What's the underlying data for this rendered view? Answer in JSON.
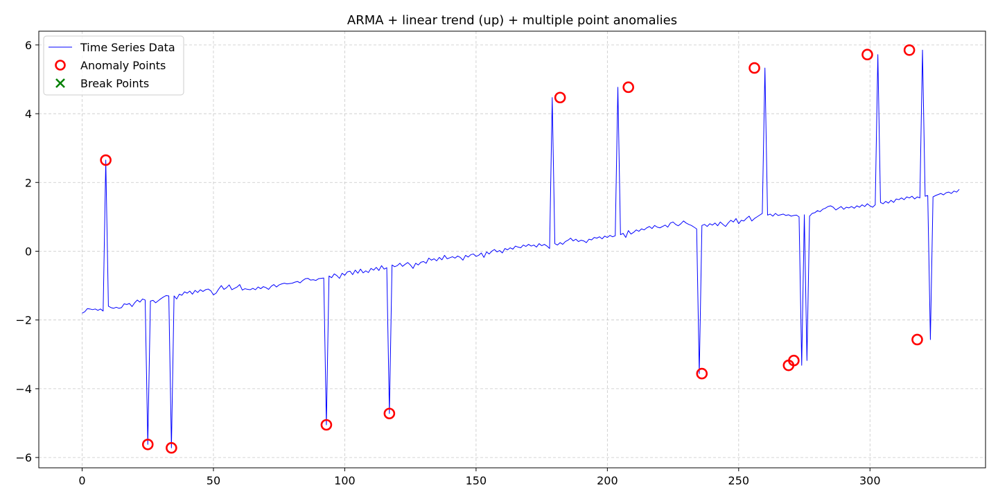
{
  "chart_data": {
    "type": "line",
    "title": "ARMA + linear trend (up) + multiple point anomalies",
    "xlabel": "",
    "ylabel": "",
    "xlim": [
      -16.5,
      344
    ],
    "ylim": [
      -6.3,
      6.4
    ],
    "xticks": [
      0,
      50,
      100,
      150,
      200,
      250,
      300
    ],
    "yticks": [
      -6,
      -4,
      -2,
      0,
      2,
      4,
      6
    ],
    "grid": true,
    "legend_position": "top-left",
    "colors": {
      "series": "#0000ff",
      "anomaly": "#ff0000",
      "break": "#008000"
    },
    "legend": [
      {
        "label": "Time Series Data",
        "marker": "line",
        "color": "#0000ff"
      },
      {
        "label": "Anomaly Points",
        "marker": "circle",
        "color": "#ff0000"
      },
      {
        "label": "Break Points",
        "marker": "x",
        "color": "#008000"
      }
    ],
    "series": [
      {
        "name": "Time Series Data",
        "color": "#0000ff",
        "values": [
          -1.8,
          -1.76,
          -1.67,
          -1.68,
          -1.7,
          -1.68,
          -1.72,
          -1.68,
          -1.74,
          2.65,
          -1.6,
          -1.64,
          -1.66,
          -1.63,
          -1.66,
          -1.64,
          -1.53,
          -1.55,
          -1.52,
          -1.61,
          -1.5,
          -1.42,
          -1.48,
          -1.39,
          -1.42,
          -5.62,
          -1.45,
          -1.43,
          -1.5,
          -1.44,
          -1.38,
          -1.33,
          -1.29,
          -1.3,
          -5.72,
          -1.3,
          -1.39,
          -1.25,
          -1.28,
          -1.18,
          -1.22,
          -1.16,
          -1.25,
          -1.14,
          -1.2,
          -1.12,
          -1.17,
          -1.12,
          -1.1,
          -1.15,
          -1.27,
          -1.22,
          -1.1,
          -1.0,
          -1.11,
          -1.06,
          -0.98,
          -1.12,
          -1.08,
          -1.04,
          -0.97,
          -1.13,
          -1.09,
          -1.11,
          -1.12,
          -1.08,
          -1.12,
          -1.04,
          -1.09,
          -1.03,
          -1.06,
          -1.11,
          -1.02,
          -0.97,
          -1.04,
          -0.98,
          -0.95,
          -0.93,
          -0.95,
          -0.94,
          -0.93,
          -0.9,
          -0.88,
          -0.92,
          -0.85,
          -0.8,
          -0.79,
          -0.84,
          -0.83,
          -0.85,
          -0.8,
          -0.79,
          -0.78,
          -5.05,
          -0.72,
          -0.77,
          -0.66,
          -0.71,
          -0.79,
          -0.64,
          -0.7,
          -0.6,
          -0.58,
          -0.68,
          -0.55,
          -0.64,
          -0.52,
          -0.63,
          -0.57,
          -0.62,
          -0.5,
          -0.55,
          -0.47,
          -0.56,
          -0.42,
          -0.52,
          -0.48,
          -4.72,
          -0.4,
          -0.45,
          -0.42,
          -0.35,
          -0.44,
          -0.38,
          -0.33,
          -0.4,
          -0.5,
          -0.35,
          -0.4,
          -0.32,
          -0.3,
          -0.35,
          -0.2,
          -0.26,
          -0.22,
          -0.28,
          -0.18,
          -0.25,
          -0.12,
          -0.22,
          -0.19,
          -0.16,
          -0.2,
          -0.14,
          -0.18,
          -0.26,
          -0.12,
          -0.17,
          -0.1,
          -0.08,
          -0.15,
          -0.12,
          -0.05,
          -0.18,
          -0.02,
          -0.08,
          0.0,
          0.05,
          -0.02,
          0.02,
          -0.05,
          0.08,
          0.04,
          0.1,
          0.06,
          0.15,
          0.12,
          0.1,
          0.18,
          0.14,
          0.2,
          0.15,
          0.18,
          0.12,
          0.22,
          0.16,
          0.2,
          0.15,
          0.08,
          4.47,
          0.22,
          0.18,
          0.25,
          0.2,
          0.28,
          0.32,
          0.38,
          0.3,
          0.35,
          0.28,
          0.32,
          0.3,
          0.25,
          0.35,
          0.33,
          0.4,
          0.38,
          0.42,
          0.36,
          0.44,
          0.4,
          0.46,
          0.42,
          0.45,
          4.77,
          0.48,
          0.52,
          0.4,
          0.6,
          0.5,
          0.55,
          0.62,
          0.58,
          0.65,
          0.62,
          0.68,
          0.72,
          0.66,
          0.75,
          0.7,
          0.68,
          0.72,
          0.76,
          0.7,
          0.82,
          0.85,
          0.78,
          0.74,
          0.8,
          0.88,
          0.82,
          0.78,
          0.75,
          0.7,
          0.65,
          -3.56,
          0.75,
          0.78,
          0.72,
          0.8,
          0.76,
          0.82,
          0.74,
          0.85,
          0.78,
          0.72,
          0.82,
          0.9,
          0.85,
          0.95,
          0.8,
          0.9,
          0.88,
          0.96,
          1.02,
          0.88,
          0.95,
          1.0,
          1.05,
          1.1,
          5.33,
          1.05,
          1.08,
          1.02,
          1.1,
          1.04,
          1.06,
          1.08,
          1.04,
          1.06,
          1.02,
          1.04,
          1.05,
          1.0,
          -3.32,
          1.06,
          -3.18,
          1.02,
          1.1,
          1.12,
          1.18,
          1.15,
          1.22,
          1.25,
          1.3,
          1.32,
          1.28,
          1.2,
          1.25,
          1.3,
          1.22,
          1.28,
          1.26,
          1.3,
          1.25,
          1.32,
          1.28,
          1.35,
          1.3,
          1.38,
          1.32,
          1.28,
          1.35,
          5.72,
          1.42,
          1.38,
          1.45,
          1.4,
          1.48,
          1.42,
          1.52,
          1.5,
          1.55,
          1.5,
          1.58,
          1.55,
          1.6,
          1.52,
          1.58,
          1.55,
          5.85,
          1.6,
          1.62,
          -2.57,
          1.58,
          1.62,
          1.65,
          1.68,
          1.64,
          1.7,
          1.72,
          1.68,
          1.75,
          1.72,
          1.8
        ]
      }
    ],
    "anomalies": {
      "x": [
        9,
        25,
        34,
        93,
        117,
        182,
        208,
        236,
        256,
        269,
        271,
        299,
        315,
        318
      ],
      "y": [
        2.65,
        -5.62,
        -5.72,
        -5.05,
        -4.72,
        4.47,
        4.77,
        -3.56,
        5.33,
        -3.32,
        -3.18,
        5.72,
        5.85,
        -2.57
      ]
    },
    "break_points": {
      "x": [],
      "y": []
    }
  }
}
